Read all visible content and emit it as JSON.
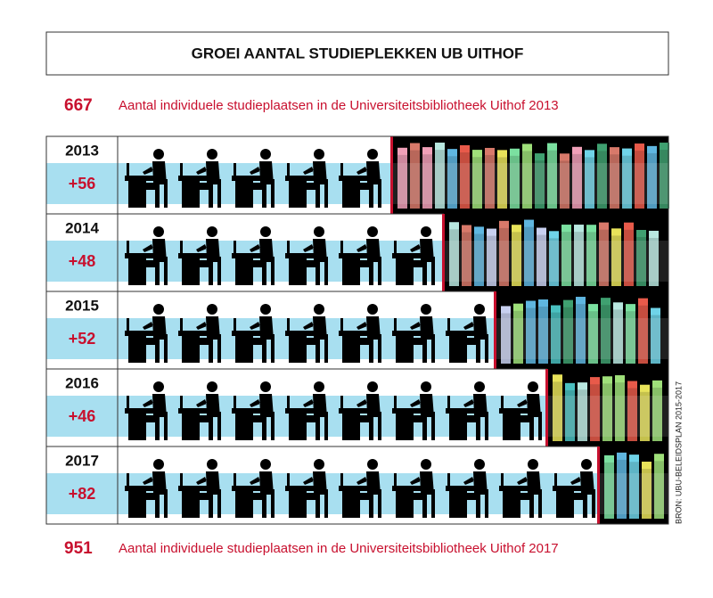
{
  "chart_data": {
    "type": "pictograph",
    "title": "GROEI AANTAL STUDIEPLEKKEN UB UITHOF",
    "start_value": 667,
    "start_text": "Aantal individuele studieplaatsen in de Universiteitsbibliotheek Uithof 2013",
    "end_value": 951,
    "end_text": "Aantal individuele studieplaatsen in de Universiteitsbibliotheek Uithof 2017",
    "source": "BRON: UBU-BELEIDSPLAN 2015-2017",
    "categories": [
      "2013",
      "2014",
      "2015",
      "2016",
      "2017"
    ],
    "values": [
      56,
      48,
      52,
      46,
      82
    ],
    "value_labels": [
      "+56",
      "+48",
      "+52",
      "+46",
      "+82"
    ],
    "color": "#c8102e",
    "band_color": "#a8dff0"
  }
}
